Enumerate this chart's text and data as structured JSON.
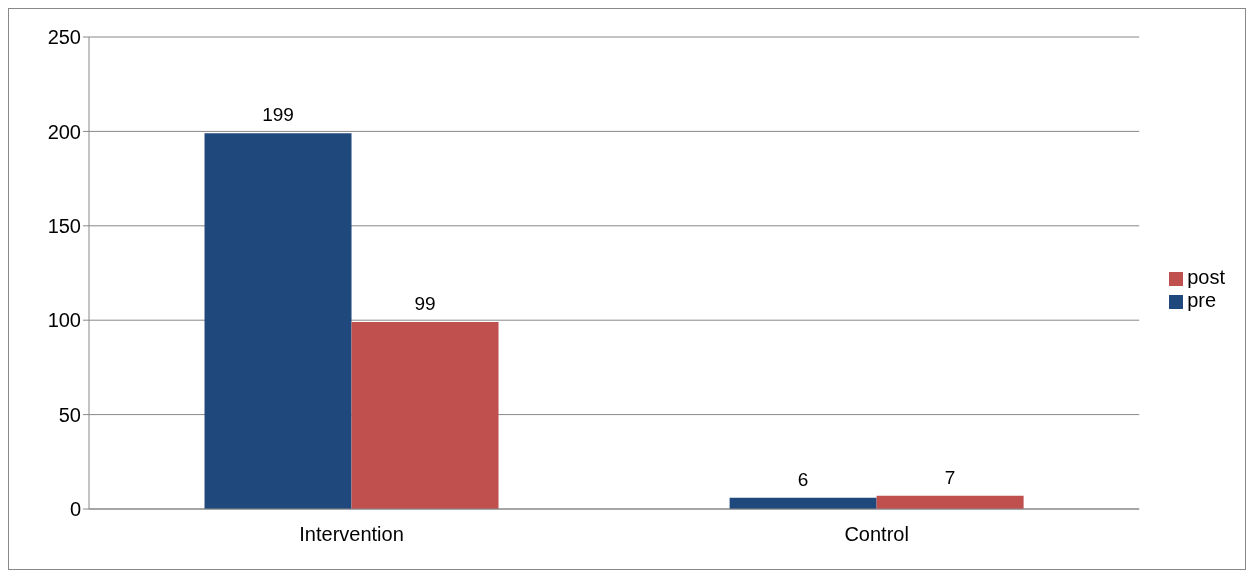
{
  "chart_data": {
    "type": "bar",
    "categories": [
      "Intervention",
      "Control"
    ],
    "series": [
      {
        "name": "pre",
        "color": "#1f497d",
        "values": [
          199,
          6
        ]
      },
      {
        "name": "post",
        "color": "#c0504d",
        "values": [
          99,
          7
        ]
      }
    ],
    "ylim": [
      0,
      250
    ],
    "yticks": [
      0,
      50,
      100,
      150,
      200,
      250
    ],
    "grid": "y",
    "legend": "right",
    "data_labels": true
  }
}
